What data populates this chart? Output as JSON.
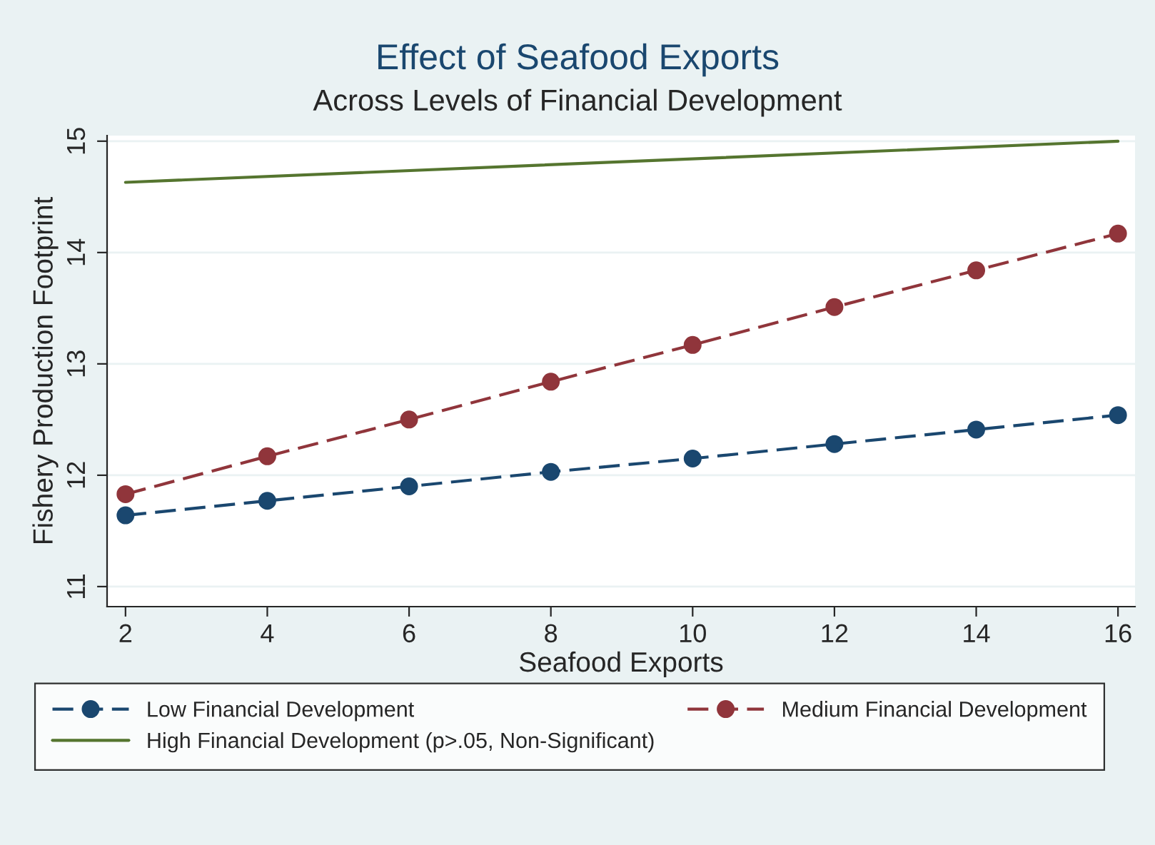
{
  "chart_data": {
    "type": "line",
    "title": "Effect of Seafood Exports",
    "subtitle": "Across Levels of Financial Development",
    "xlabel": "Seafood Exports",
    "ylabel": "Fishery Production Footprint",
    "x": [
      2,
      4,
      6,
      8,
      10,
      12,
      14,
      16
    ],
    "series": [
      {
        "name": "Low Financial Development",
        "color": "#1a476f",
        "marker": "circle",
        "line_style": "dashed",
        "values": [
          11.64,
          11.77,
          11.9,
          12.03,
          12.15,
          12.28,
          12.41,
          12.54
        ]
      },
      {
        "name": "Medium Financial Development",
        "color": "#90353b",
        "marker": "circle",
        "line_style": "dashed",
        "values": [
          11.83,
          12.17,
          12.5,
          12.84,
          13.17,
          13.51,
          13.84,
          14.17
        ]
      },
      {
        "name": "High Financial Development (p>.05, Non-Significant)",
        "color": "#55752f",
        "marker": "none",
        "line_style": "solid",
        "x": [
          2,
          16
        ],
        "values": [
          14.63,
          15.0
        ]
      }
    ],
    "xlim": [
      1.74,
      16.24
    ],
    "ylim": [
      10.82,
      15.05
    ],
    "xticks": [
      2,
      4,
      6,
      8,
      10,
      12,
      14,
      16
    ],
    "yticks": [
      11,
      12,
      13,
      14,
      15
    ],
    "grid": "y",
    "legend": "bottom"
  }
}
